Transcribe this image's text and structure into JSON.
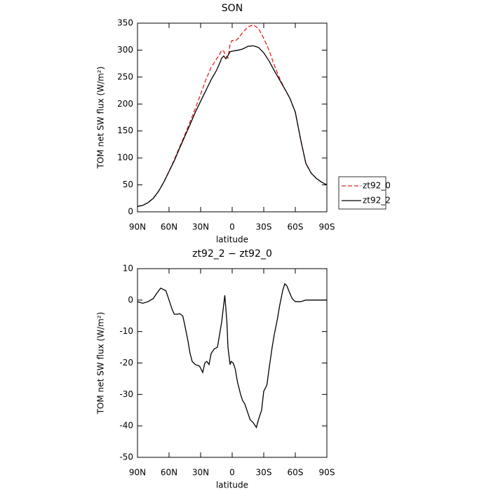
{
  "chart_data": [
    {
      "type": "line",
      "title": "SON",
      "x_label": "latitude",
      "y_label": "TOM net SW flux (W/m²)",
      "x": [
        90,
        85,
        80,
        75,
        70,
        65,
        60,
        55,
        50,
        45,
        40,
        35,
        30,
        25,
        20,
        15,
        12,
        10,
        8,
        6,
        4,
        2,
        0,
        -3,
        -6,
        -10,
        -15,
        -20,
        -25,
        -30,
        -35,
        -40,
        -45,
        -50,
        -55,
        -60,
        -65,
        -70,
        -75,
        -80,
        -85,
        -90
      ],
      "series": [
        {
          "name": "zt92_0",
          "color": "#e8201c",
          "linestyle": "dashed",
          "values": [
            10,
            12,
            17,
            25,
            38,
            55,
            75,
            97,
            120,
            143,
            167,
            192,
            218,
            245,
            268,
            283,
            292,
            300,
            298,
            290,
            285,
            310,
            318,
            317,
            322,
            333,
            343,
            347,
            340,
            322,
            300,
            272,
            248,
            228,
            210,
            185,
            135,
            90,
            72,
            62,
            55,
            50
          ]
        },
        {
          "name": "zt92_2",
          "color": "#000000",
          "linestyle": "solid",
          "values": [
            10,
            12,
            17,
            25,
            38,
            55,
            75,
            95,
            118,
            140,
            162,
            185,
            205,
            225,
            245,
            262,
            275,
            285,
            289,
            284,
            290,
            297,
            298,
            299,
            300,
            302,
            307,
            308,
            305,
            295,
            280,
            262,
            245,
            228,
            210,
            185,
            135,
            90,
            72,
            62,
            55,
            50
          ]
        }
      ],
      "xlim": [
        90,
        -90
      ],
      "xticks": [
        {
          "value": 90,
          "label": "90N"
        },
        {
          "value": 60,
          "label": "60N"
        },
        {
          "value": 30,
          "label": "30N"
        },
        0,
        {
          "value": -30,
          "label": "30S"
        },
        {
          "value": -60,
          "label": "60S"
        },
        {
          "value": -90,
          "label": "90S"
        }
      ],
      "ylim": [
        0,
        350
      ],
      "yticks": [
        0,
        50,
        100,
        150,
        200,
        250,
        300,
        350
      ],
      "legend": "right"
    },
    {
      "type": "line",
      "title": "zt92_2 − zt92_0",
      "x_label": "latitude",
      "y_label": "TOM net SW flux (W/m²)",
      "x": [
        90,
        85,
        80,
        75,
        72,
        68,
        63,
        60,
        57,
        55,
        52,
        50,
        47,
        45,
        42,
        40,
        38,
        35,
        31,
        28,
        26,
        24,
        22,
        20,
        17,
        14,
        12,
        10,
        7,
        5,
        4,
        2,
        1,
        -1,
        -3,
        -5,
        -8,
        -10,
        -12,
        -14,
        -17,
        -20,
        -23,
        -25,
        -28,
        -30,
        -33,
        -35,
        -38,
        -40,
        -43,
        -45,
        -48,
        -50,
        -52,
        -55,
        -57,
        -60,
        -65,
        -70,
        -75,
        -80,
        -85,
        -90
      ],
      "series": [
        {
          "color": "#000000",
          "linestyle": "solid",
          "values": [
            -0.5,
            -1,
            -0.5,
            0.5,
            2,
            3.8,
            3,
            0,
            -3,
            -4.5,
            -4.5,
            -4.3,
            -5,
            -8,
            -13,
            -17,
            -19.5,
            -20.5,
            -21,
            -23,
            -20,
            -19.5,
            -20.5,
            -17,
            -15.5,
            -15,
            -11,
            -7,
            1.5,
            -7,
            -15,
            -20.5,
            -19.5,
            -20,
            -22,
            -26,
            -30,
            -32,
            -33,
            -35,
            -38,
            -39,
            -40.5,
            -38,
            -35,
            -29,
            -27,
            -22,
            -15,
            -11,
            -6,
            -2,
            3,
            5.2,
            4.5,
            2,
            0.5,
            -0.5,
            -0.5,
            0,
            0,
            0,
            0,
            0
          ]
        }
      ],
      "xlim": [
        90,
        -90
      ],
      "xticks": [
        {
          "value": 90,
          "label": "90N"
        },
        {
          "value": 60,
          "label": "60N"
        },
        {
          "value": 30,
          "label": "30N"
        },
        0,
        {
          "value": -30,
          "label": "30S"
        },
        {
          "value": -60,
          "label": "60S"
        },
        {
          "value": -90,
          "label": "90S"
        }
      ],
      "ylim": [
        -50,
        10
      ],
      "yticks": [
        -50,
        -40,
        -30,
        -20,
        -10,
        0,
        10
      ]
    }
  ]
}
